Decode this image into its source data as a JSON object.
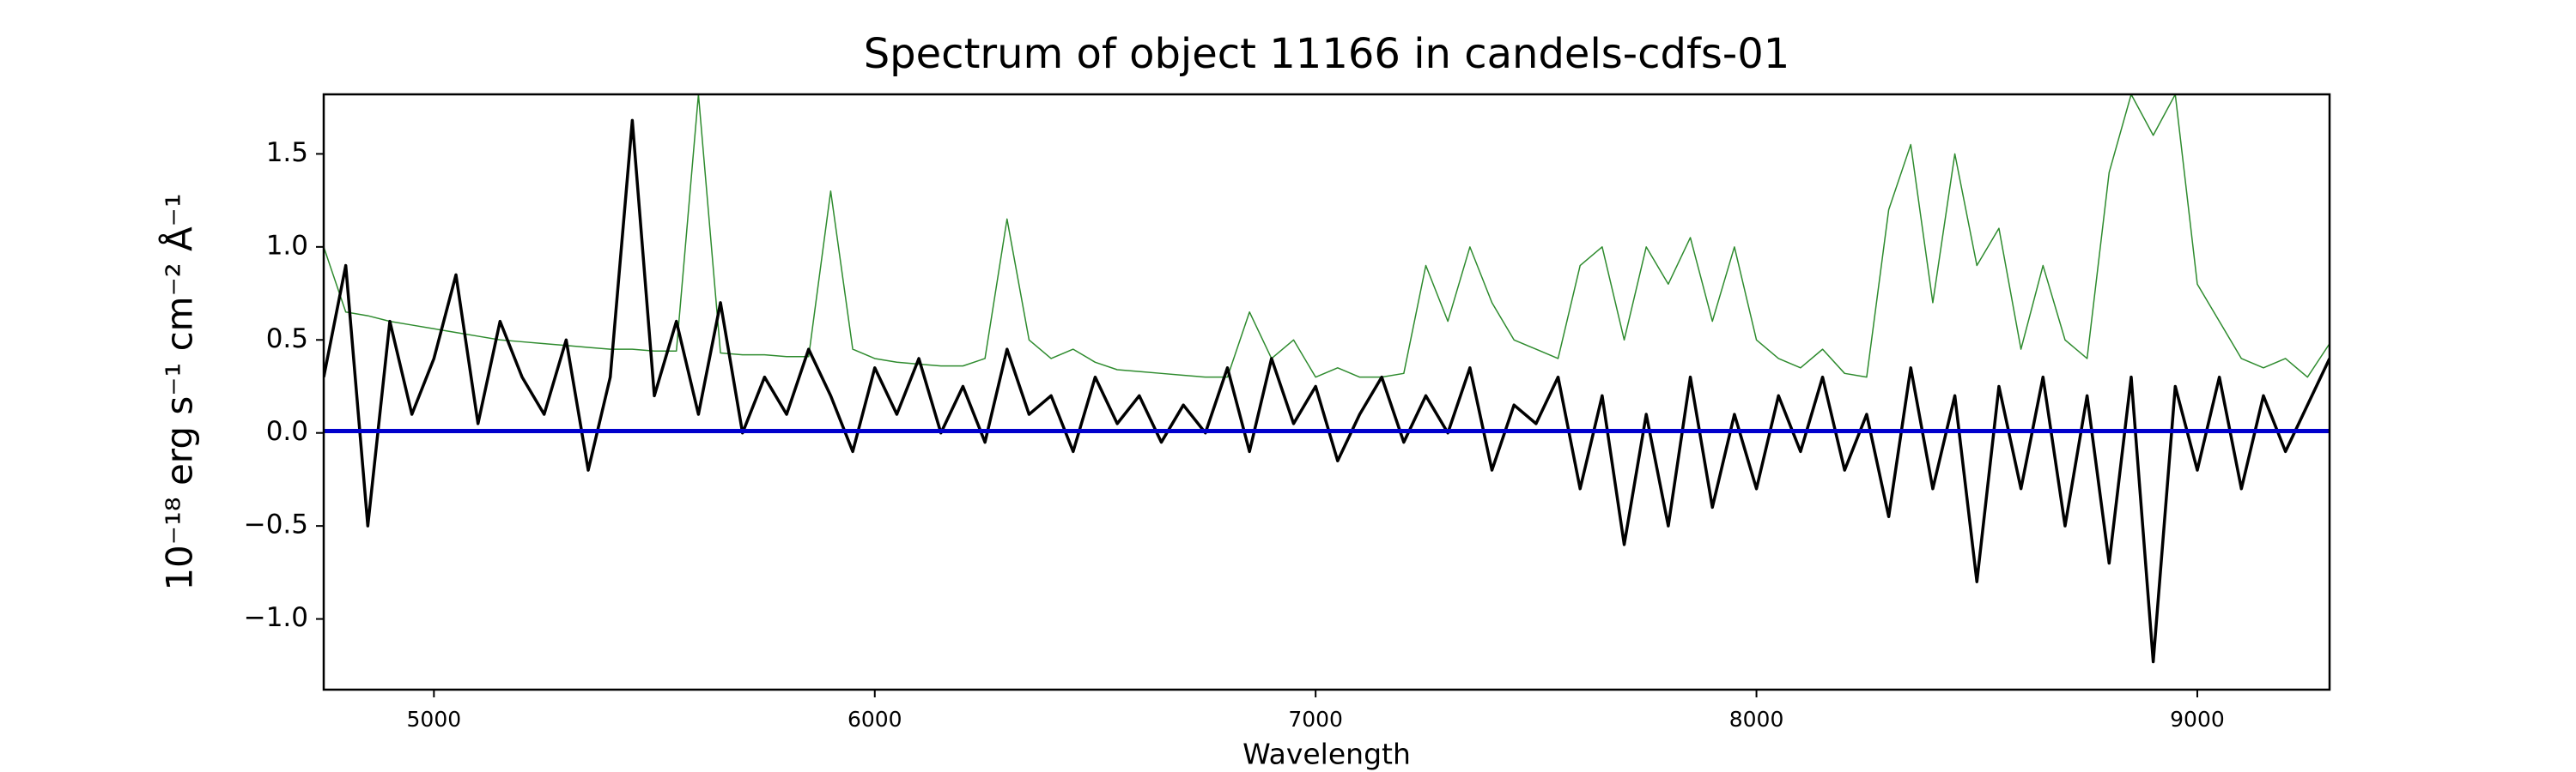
{
  "chart_data": {
    "type": "line",
    "title": "Spectrum of object 11166 in candels-cdfs-01",
    "xlabel": "Wavelength",
    "ylabel": "10⁻¹⁸ erg s⁻¹ cm⁻² Å⁻¹",
    "xlim": [
      4750,
      9300
    ],
    "ylim": [
      -1.38,
      1.82
    ],
    "xticks": [
      5000,
      6000,
      7000,
      8000,
      9000
    ],
    "yticks": [
      {
        "value": -1.0,
        "label": "−1.0"
      },
      {
        "value": -0.5,
        "label": "−0.5"
      },
      {
        "value": 0.0,
        "label": "0.0"
      },
      0.5,
      {
        "value": 1.0,
        "label": "1.0"
      },
      {
        "value": 1.5,
        "label": "1.5"
      }
    ],
    "series": [
      {
        "color": "#2e8b2e",
        "width": 1.5,
        "x": [
          4750,
          4800,
          4850,
          4900,
          4950,
          5000,
          5050,
          5100,
          5150,
          5200,
          5250,
          5300,
          5350,
          5400,
          5450,
          5500,
          5550,
          5600,
          5650,
          5700,
          5750,
          5800,
          5850,
          5900,
          5950,
          6000,
          6050,
          6100,
          6150,
          6200,
          6250,
          6300,
          6350,
          6400,
          6450,
          6500,
          6550,
          6600,
          6650,
          6700,
          6750,
          6800,
          6850,
          6900,
          6950,
          7000,
          7050,
          7100,
          7150,
          7200,
          7250,
          7300,
          7350,
          7400,
          7450,
          7500,
          7550,
          7600,
          7650,
          7700,
          7750,
          7800,
          7850,
          7900,
          7950,
          8000,
          8050,
          8100,
          8150,
          8200,
          8250,
          8300,
          8350,
          8400,
          8450,
          8500,
          8550,
          8600,
          8650,
          8700,
          8750,
          8800,
          8850,
          8900,
          8950,
          9000,
          9050,
          9100,
          9150,
          9200,
          9250,
          9300
        ],
        "values": [
          1.0,
          0.65,
          0.63,
          0.6,
          0.58,
          0.56,
          0.54,
          0.52,
          0.5,
          0.49,
          0.48,
          0.47,
          0.46,
          0.45,
          0.45,
          0.44,
          0.44,
          1.82,
          0.43,
          0.42,
          0.42,
          0.41,
          0.41,
          1.3,
          0.45,
          0.4,
          0.38,
          0.37,
          0.36,
          0.36,
          0.4,
          1.15,
          0.5,
          0.4,
          0.45,
          0.38,
          0.34,
          0.33,
          0.32,
          0.31,
          0.3,
          0.3,
          0.65,
          0.4,
          0.5,
          0.3,
          0.35,
          0.3,
          0.3,
          0.32,
          0.9,
          0.6,
          1.0,
          0.7,
          0.5,
          0.45,
          0.4,
          0.9,
          1.0,
          0.5,
          1.0,
          0.8,
          1.05,
          0.6,
          1.0,
          0.5,
          0.4,
          0.35,
          0.45,
          0.32,
          0.3,
          1.2,
          1.55,
          0.7,
          1.5,
          0.9,
          1.1,
          0.45,
          0.9,
          0.5,
          0.4,
          1.4,
          1.82,
          1.6,
          1.82,
          0.8,
          0.6,
          0.4,
          0.35,
          0.4,
          0.3,
          0.48
        ]
      },
      {
        "color": "#000000",
        "width": 3.5,
        "x": [
          4750,
          4800,
          4850,
          4900,
          4950,
          5000,
          5050,
          5100,
          5150,
          5200,
          5250,
          5300,
          5350,
          5400,
          5450,
          5500,
          5550,
          5600,
          5650,
          5700,
          5750,
          5800,
          5850,
          5900,
          5950,
          6000,
          6050,
          6100,
          6150,
          6200,
          6250,
          6300,
          6350,
          6400,
          6450,
          6500,
          6550,
          6600,
          6650,
          6700,
          6750,
          6800,
          6850,
          6900,
          6950,
          7000,
          7050,
          7100,
          7150,
          7200,
          7250,
          7300,
          7350,
          7400,
          7450,
          7500,
          7550,
          7600,
          7650,
          7700,
          7750,
          7800,
          7850,
          7900,
          7950,
          8000,
          8050,
          8100,
          8150,
          8200,
          8250,
          8300,
          8350,
          8400,
          8450,
          8500,
          8550,
          8600,
          8650,
          8700,
          8750,
          8800,
          8850,
          8900,
          8950,
          9000,
          9050,
          9100,
          9150,
          9200,
          9250,
          9300
        ],
        "values": [
          0.3,
          0.9,
          -0.5,
          0.6,
          0.1,
          0.4,
          0.85,
          0.05,
          0.6,
          0.3,
          0.1,
          0.5,
          -0.2,
          0.3,
          1.68,
          0.2,
          0.6,
          0.1,
          0.7,
          0.0,
          0.3,
          0.1,
          0.45,
          0.2,
          -0.1,
          0.35,
          0.1,
          0.4,
          0.0,
          0.25,
          -0.05,
          0.45,
          0.1,
          0.2,
          -0.1,
          0.3,
          0.05,
          0.2,
          -0.05,
          0.15,
          0.0,
          0.35,
          -0.1,
          0.4,
          0.05,
          0.25,
          -0.15,
          0.1,
          0.3,
          -0.05,
          0.2,
          0.0,
          0.35,
          -0.2,
          0.15,
          0.05,
          0.3,
          -0.3,
          0.2,
          -0.6,
          0.1,
          -0.5,
          0.3,
          -0.4,
          0.1,
          -0.3,
          0.2,
          -0.1,
          0.3,
          -0.2,
          0.1,
          -0.45,
          0.35,
          -0.3,
          0.2,
          -0.8,
          0.25,
          -0.3,
          0.3,
          -0.5,
          0.2,
          -0.7,
          0.3,
          -1.23,
          0.25,
          -0.2,
          0.3,
          -0.3,
          0.2,
          -0.1,
          0.15,
          0.4
        ]
      },
      {
        "color": "#0000cc",
        "width": 5,
        "x": [
          4750,
          9300
        ],
        "values": [
          0.01,
          0.01
        ]
      }
    ]
  }
}
